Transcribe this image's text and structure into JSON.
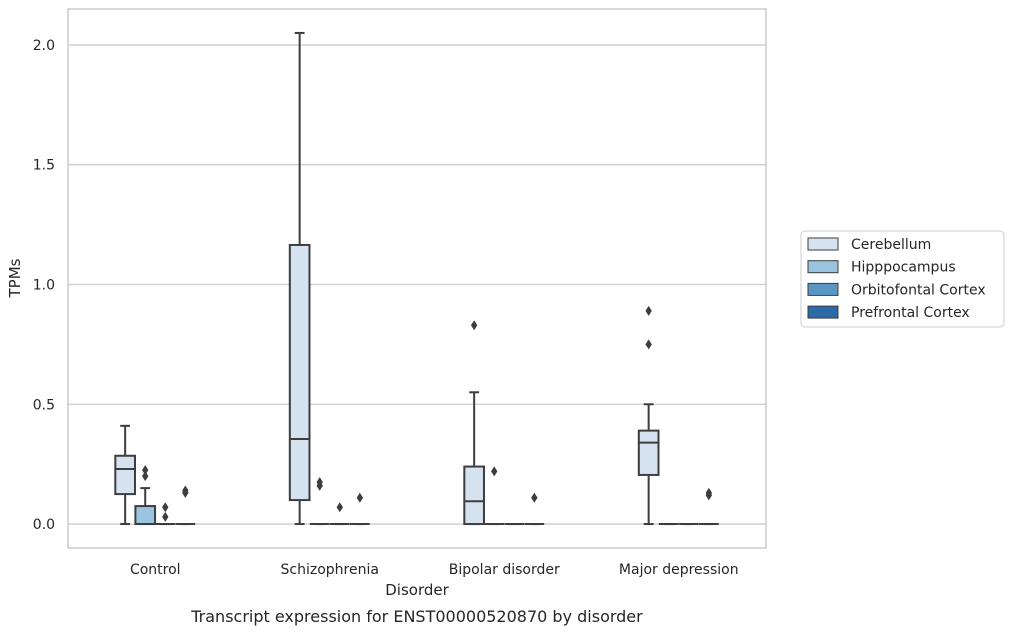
{
  "chart_data": {
    "type": "box",
    "title": "",
    "caption": "Transcript expression for ENST00000520870 by disorder",
    "xlabel": "Disorder",
    "ylabel": "TPMs",
    "ylim": [
      -0.1,
      2.15
    ],
    "yticks": [
      0.0,
      0.5,
      1.0,
      1.5,
      2.0
    ],
    "ytick_labels": [
      "0.0",
      "0.5",
      "1.0",
      "1.5",
      "2.0"
    ],
    "grid": "horizontal",
    "legend_position": "right",
    "categories": [
      "Control",
      "Schizophrenia",
      "Bipolar disorder",
      "Major depression"
    ],
    "series": [
      {
        "name": "Cerebellum",
        "color": "#d5e3f1",
        "boxes": [
          {
            "q1": 0.125,
            "median": 0.23,
            "q3": 0.285,
            "whisker_low": 0.0,
            "whisker_high": 0.41,
            "outliers": []
          },
          {
            "q1": 0.1,
            "median": 0.355,
            "q3": 1.165,
            "whisker_low": 0.0,
            "whisker_high": 2.05,
            "outliers": []
          },
          {
            "q1": 0.0,
            "median": 0.095,
            "q3": 0.24,
            "whisker_low": 0.0,
            "whisker_high": 0.55,
            "outliers": [
              0.83
            ]
          },
          {
            "q1": 0.205,
            "median": 0.34,
            "q3": 0.39,
            "whisker_low": 0.0,
            "whisker_high": 0.5,
            "outliers": [
              0.75,
              0.89
            ]
          }
        ]
      },
      {
        "name": "Hipppocampus",
        "color": "#9ac4df",
        "boxes": [
          {
            "q1": 0.0,
            "median": 0.0,
            "q3": 0.075,
            "whisker_low": 0.0,
            "whisker_high": 0.15,
            "outliers": [
              0.2,
              0.225
            ]
          },
          {
            "q1": 0.0,
            "median": 0.0,
            "q3": 0.0,
            "whisker_low": 0.0,
            "whisker_high": 0.0,
            "outliers": [
              0.16,
              0.175
            ]
          },
          {
            "q1": 0.0,
            "median": 0.0,
            "q3": 0.0,
            "whisker_low": 0.0,
            "whisker_high": 0.0,
            "outliers": [
              0.22
            ]
          },
          {
            "q1": 0.0,
            "median": 0.0,
            "q3": 0.0,
            "whisker_low": 0.0,
            "whisker_high": 0.0,
            "outliers": []
          }
        ]
      },
      {
        "name": "Orbitofontal Cortex",
        "color": "#5a96c4",
        "boxes": [
          {
            "q1": 0.0,
            "median": 0.0,
            "q3": 0.0,
            "whisker_low": 0.0,
            "whisker_high": 0.0,
            "outliers": [
              0.03,
              0.07
            ]
          },
          {
            "q1": 0.0,
            "median": 0.0,
            "q3": 0.0,
            "whisker_low": 0.0,
            "whisker_high": 0.0,
            "outliers": [
              0.07
            ]
          },
          {
            "q1": 0.0,
            "median": 0.0,
            "q3": 0.0,
            "whisker_low": 0.0,
            "whisker_high": 0.0,
            "outliers": []
          },
          {
            "q1": 0.0,
            "median": 0.0,
            "q3": 0.0,
            "whisker_low": 0.0,
            "whisker_high": 0.0,
            "outliers": []
          }
        ]
      },
      {
        "name": "Prefrontal Cortex",
        "color": "#2b6aa8",
        "boxes": [
          {
            "q1": 0.0,
            "median": 0.0,
            "q3": 0.0,
            "whisker_low": 0.0,
            "whisker_high": 0.0,
            "outliers": [
              0.13,
              0.14
            ]
          },
          {
            "q1": 0.0,
            "median": 0.0,
            "q3": 0.0,
            "whisker_low": 0.0,
            "whisker_high": 0.0,
            "outliers": [
              0.11
            ]
          },
          {
            "q1": 0.0,
            "median": 0.0,
            "q3": 0.0,
            "whisker_low": 0.0,
            "whisker_high": 0.0,
            "outliers": [
              0.11
            ]
          },
          {
            "q1": 0.0,
            "median": 0.0,
            "q3": 0.0,
            "whisker_low": 0.0,
            "whisker_high": 0.0,
            "outliers": [
              0.12,
              0.13
            ]
          }
        ]
      }
    ]
  }
}
